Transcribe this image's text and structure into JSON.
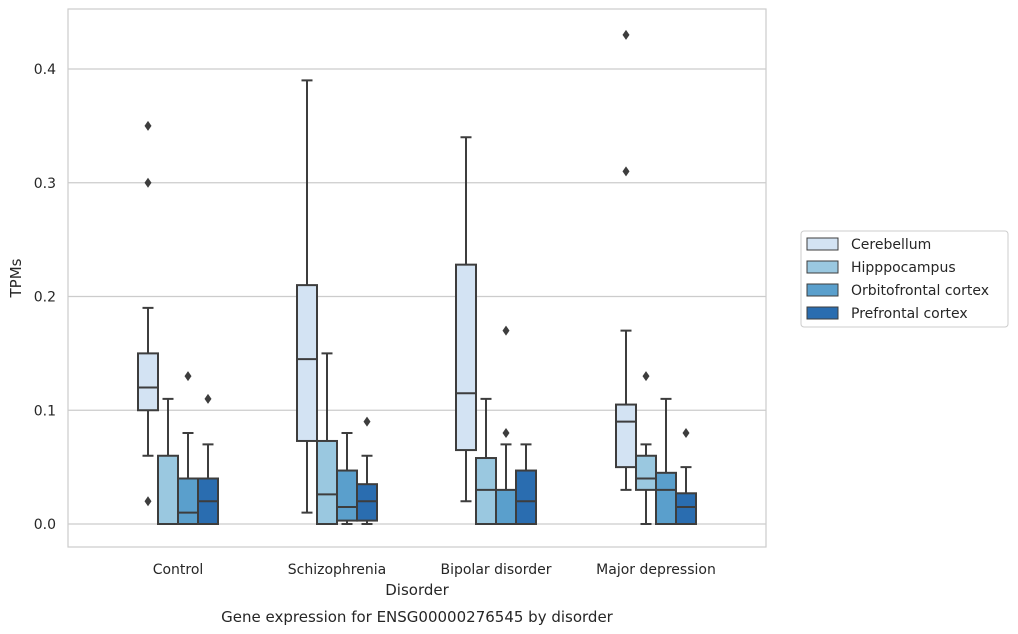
{
  "chart_data": {
    "type": "boxplot",
    "title": "",
    "caption": "Gene expression for ENSG00000276545 by disorder",
    "xlabel": "Disorder",
    "ylabel": "TPMs",
    "ylim": [
      -0.021,
      0.453
    ],
    "yticks": [
      0.0,
      0.1,
      0.2,
      0.3,
      0.4
    ],
    "ytick_labels": [
      "0.0",
      "0.1",
      "0.2",
      "0.3",
      "0.4"
    ],
    "grid": "horizontal",
    "legend_position": "right",
    "categories": [
      "Control",
      "Schizophrenia",
      "Bipolar disorder",
      "Major depression"
    ],
    "series": [
      {
        "name": "Cerebellum",
        "color": "#d3e3f3",
        "boxes": [
          {
            "whislo": 0.06,
            "q1": 0.1,
            "med": 0.12,
            "q3": 0.15,
            "whishi": 0.19,
            "fliers": [
              0.35,
              0.3,
              0.02
            ]
          },
          {
            "whislo": 0.01,
            "q1": 0.073,
            "med": 0.145,
            "q3": 0.21,
            "whishi": 0.39,
            "fliers": []
          },
          {
            "whislo": 0.02,
            "q1": 0.065,
            "med": 0.115,
            "q3": 0.228,
            "whishi": 0.34,
            "fliers": []
          },
          {
            "whislo": 0.03,
            "q1": 0.05,
            "med": 0.09,
            "q3": 0.105,
            "whishi": 0.17,
            "fliers": [
              0.43,
              0.31
            ]
          }
        ]
      },
      {
        "name": "Hipppocampus",
        "color": "#9ac8e0",
        "boxes": [
          {
            "whislo": 0.0,
            "q1": 0.0,
            "med": 0.0,
            "q3": 0.06,
            "whishi": 0.11,
            "fliers": []
          },
          {
            "whislo": 0.0,
            "q1": 0.0,
            "med": 0.026,
            "q3": 0.073,
            "whishi": 0.15,
            "fliers": []
          },
          {
            "whislo": 0.0,
            "q1": 0.0,
            "med": 0.03,
            "q3": 0.058,
            "whishi": 0.11,
            "fliers": []
          },
          {
            "whislo": 0.0,
            "q1": 0.03,
            "med": 0.04,
            "q3": 0.06,
            "whishi": 0.07,
            "fliers": [
              0.13
            ]
          }
        ]
      },
      {
        "name": "Orbitofrontal cortex",
        "color": "#5a9fcc",
        "boxes": [
          {
            "whislo": 0.0,
            "q1": 0.0,
            "med": 0.01,
            "q3": 0.04,
            "whishi": 0.08,
            "fliers": [
              0.13
            ]
          },
          {
            "whislo": 0.0,
            "q1": 0.003,
            "med": 0.015,
            "q3": 0.047,
            "whishi": 0.08,
            "fliers": []
          },
          {
            "whislo": 0.0,
            "q1": 0.0,
            "med": 0.0,
            "q3": 0.03,
            "whishi": 0.07,
            "fliers": [
              0.17,
              0.08
            ]
          },
          {
            "whislo": 0.0,
            "q1": 0.0,
            "med": 0.03,
            "q3": 0.045,
            "whishi": 0.11,
            "fliers": []
          }
        ]
      },
      {
        "name": "Prefrontal cortex",
        "color": "#2a6db0",
        "boxes": [
          {
            "whislo": 0.0,
            "q1": 0.0,
            "med": 0.02,
            "q3": 0.04,
            "whishi": 0.07,
            "fliers": [
              0.11
            ]
          },
          {
            "whislo": 0.0,
            "q1": 0.003,
            "med": 0.02,
            "q3": 0.035,
            "whishi": 0.06,
            "fliers": [
              0.09
            ]
          },
          {
            "whislo": 0.0,
            "q1": 0.0,
            "med": 0.02,
            "q3": 0.047,
            "whishi": 0.07,
            "fliers": []
          },
          {
            "whislo": 0.0,
            "q1": 0.0,
            "med": 0.015,
            "q3": 0.027,
            "whishi": 0.05,
            "fliers": [
              0.08
            ]
          }
        ]
      }
    ]
  }
}
